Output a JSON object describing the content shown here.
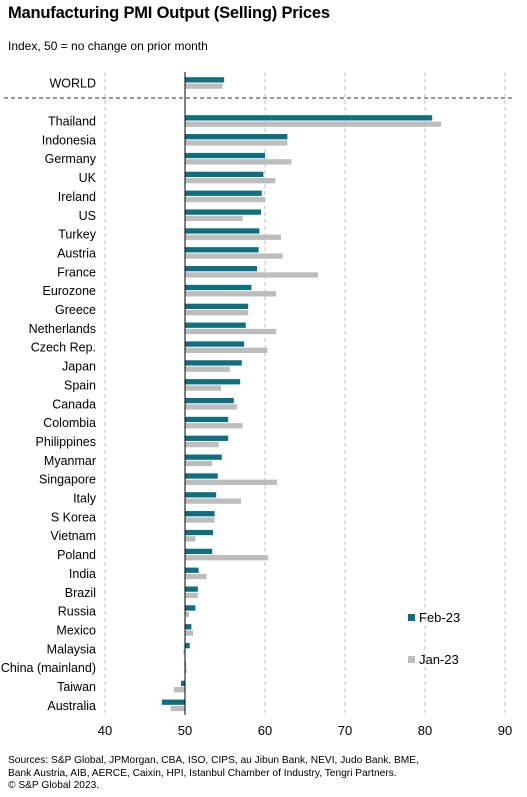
{
  "title": "Manufacturing PMI Output (Selling) Prices",
  "subtitle": "Index, 50 = no change on prior month",
  "sources": [
    "Sources: S&P Global, JPMorgan, CBA, ISO, CIPS, au Jibun Bank, NEVI, Judo Bank, BME,",
    "Bank Austria, AIB, AERCE, Caixin, HPI, Istanbul Chamber of Industry, Tengri Partners.",
    "© S&P Global 2023."
  ],
  "colors": {
    "feb": "#0f6f7f",
    "jan": "#bdbdbd",
    "grid": "#bfbfbf",
    "axis": "#000000"
  },
  "chart_data": {
    "type": "bar",
    "orientation": "horizontal",
    "baseline": 50,
    "xlim": [
      40,
      90
    ],
    "xticks": [
      "40",
      "50",
      "60",
      "70",
      "80",
      "90"
    ],
    "grid": true,
    "legend_position": "bottom-right",
    "world": {
      "category": "WORLD",
      "values": [
        54.9,
        54.7
      ]
    },
    "categories": [
      "Thailand",
      "Indonesia",
      "Germany",
      "UK",
      "Ireland",
      "US",
      "Turkey",
      "Austria",
      "France",
      "Eurozone",
      "Greece",
      "Netherlands",
      "Czech Rep.",
      "Japan",
      "Spain",
      "Canada",
      "Colombia",
      "Philippines",
      "Myanmar",
      "Singapore",
      "Italy",
      "S Korea",
      "Vietnam",
      "Poland",
      "India",
      "Brazil",
      "Russia",
      "Mexico",
      "Malaysia",
      "China (mainland)",
      "Taiwan",
      "Australia"
    ],
    "series": [
      {
        "name": "Feb-23",
        "values": [
          80.9,
          62.8,
          60.0,
          59.8,
          59.6,
          59.5,
          59.3,
          59.2,
          59.0,
          58.3,
          57.9,
          57.6,
          57.4,
          57.1,
          56.9,
          56.1,
          55.4,
          55.4,
          54.6,
          54.1,
          53.9,
          53.7,
          53.5,
          53.4,
          51.7,
          51.6,
          51.3,
          50.8,
          50.6,
          50.1,
          49.5,
          47.1
        ]
      },
      {
        "name": "Jan-23",
        "values": [
          82.0,
          62.8,
          63.3,
          61.3,
          60.0,
          57.2,
          62.0,
          62.2,
          66.6,
          61.4,
          57.9,
          61.4,
          60.3,
          55.6,
          54.5,
          56.5,
          57.2,
          54.2,
          53.4,
          61.5,
          57.0,
          53.7,
          51.3,
          60.4,
          52.7,
          51.6,
          50.5,
          51.0,
          49.8,
          50.2,
          48.6,
          48.2
        ]
      }
    ]
  }
}
